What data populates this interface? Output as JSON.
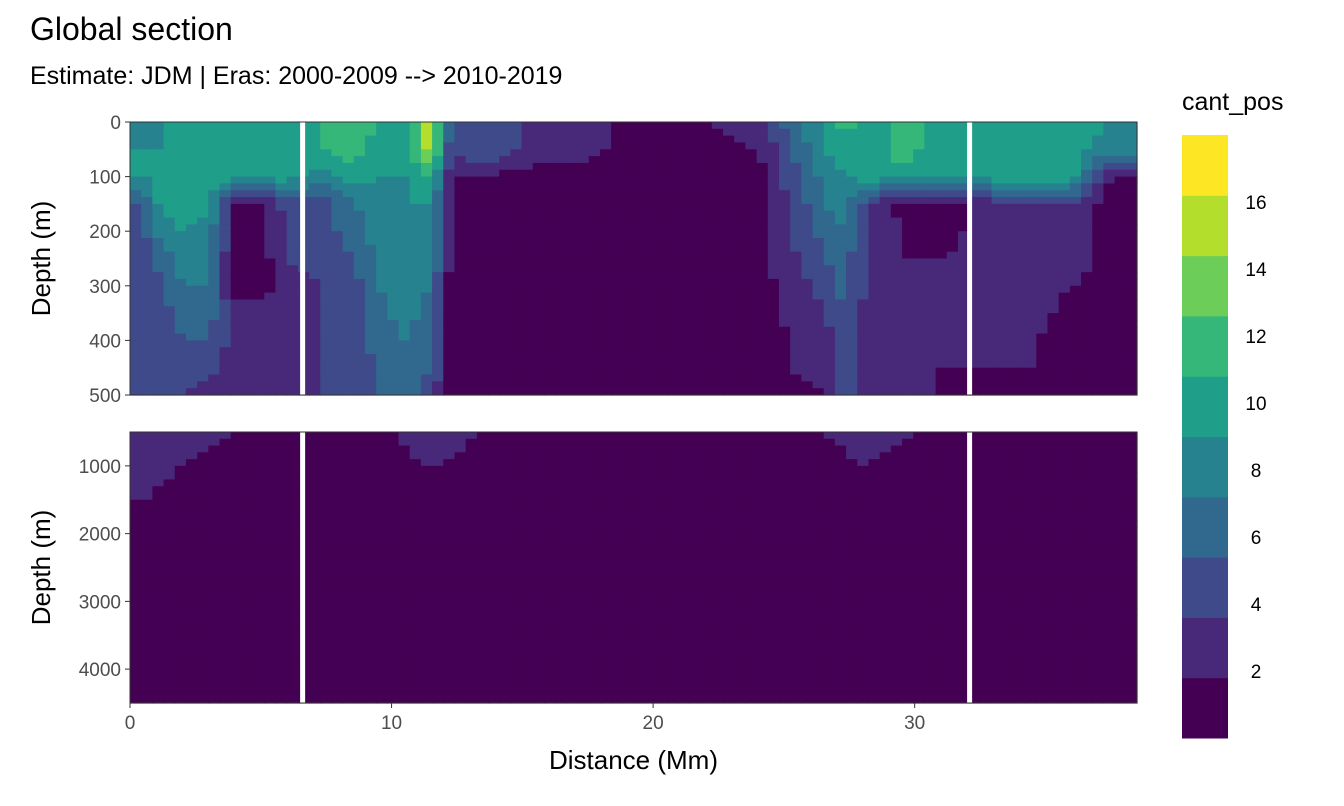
{
  "chart_data": {
    "type": "heatmap",
    "title": "Global section",
    "subtitle": "Estimate: JDM  | Eras: 2000-2009 --> 2010-2019",
    "xlabel": "Distance (Mm)",
    "ylabel": "Depth (m)",
    "xlim": [
      0,
      38.5
    ],
    "x_ticks": [
      "0",
      "10",
      "20",
      "30"
    ],
    "x_tick_values": [
      0,
      10,
      20,
      30
    ],
    "legend": {
      "title": "cant_pos",
      "placement": "right",
      "breaks": [
        0,
        2,
        4,
        6,
        8,
        10,
        12,
        14,
        16,
        18
      ],
      "labels": [
        "2",
        "4",
        "6",
        "8",
        "10",
        "12",
        "14",
        "16"
      ],
      "label_values": [
        2,
        4,
        6,
        8,
        10,
        12,
        14,
        16
      ],
      "colors": [
        "#440154",
        "#482878",
        "#3E4A89",
        "#31688E",
        "#26828E",
        "#1F9E89",
        "#35B779",
        "#6DCD59",
        "#B4DE2C",
        "#FDE725"
      ]
    },
    "panels": [
      {
        "name": "upper",
        "ylim": [
          0,
          500
        ],
        "y_ticks": [
          "0",
          "100",
          "200",
          "300",
          "400",
          "500"
        ],
        "y_tick_values": [
          0,
          100,
          200,
          300,
          400,
          500
        ],
        "grid": true
      },
      {
        "name": "lower",
        "ylim": [
          500,
          4500
        ],
        "y_ticks": [
          "1000",
          "2000",
          "3000",
          "4000"
        ],
        "y_tick_values": [
          1000,
          2000,
          3000,
          4000
        ],
        "grid": true
      }
    ],
    "section_gaps_x": [
      6.6,
      32.1
    ],
    "upper_field_samples": [
      {
        "x": 0.4,
        "values": [
          8,
          10,
          10,
          6,
          5,
          4,
          4,
          4,
          4,
          4,
          4
        ]
      },
      {
        "x": 1.2,
        "values": [
          10,
          10,
          11,
          11,
          9,
          7,
          6,
          5,
          4,
          4,
          4
        ]
      },
      {
        "x": 2.0,
        "values": [
          11,
          10,
          11,
          11,
          10,
          9,
          8,
          7,
          6,
          5,
          4
        ]
      },
      {
        "x": 3.0,
        "values": [
          11,
          11,
          11,
          11,
          9,
          9,
          8,
          7,
          6,
          5,
          3
        ]
      },
      {
        "x": 4.0,
        "values": [
          11,
          11,
          11,
          1,
          2,
          1,
          1,
          3,
          3,
          3,
          3
        ]
      },
      {
        "x": 5.0,
        "values": [
          11,
          11,
          11,
          1,
          1,
          1,
          1,
          3,
          3,
          3,
          3
        ]
      },
      {
        "x": 6.0,
        "values": [
          11,
          11,
          11,
          5,
          4,
          4,
          3,
          3,
          3,
          3,
          3
        ]
      },
      {
        "x": 7.3,
        "values": [
          12,
          12,
          9,
          5,
          5,
          5,
          4,
          4,
          4,
          4,
          4
        ]
      },
      {
        "x": 8.5,
        "values": [
          13,
          13,
          11,
          8,
          7,
          6,
          5,
          5,
          5,
          5,
          5
        ]
      },
      {
        "x": 9.5,
        "values": [
          12,
          11,
          10,
          9,
          9,
          8,
          8,
          7,
          7,
          6,
          6
        ]
      },
      {
        "x": 10.5,
        "values": [
          11,
          11,
          10,
          10,
          9,
          9,
          9,
          9,
          8,
          8,
          7
        ]
      },
      {
        "x": 11.5,
        "values": [
          17,
          17,
          12,
          10,
          9,
          9,
          8,
          7,
          7,
          6,
          5
        ]
      },
      {
        "x": 12.3,
        "values": [
          5,
          4,
          2,
          1,
          1,
          1,
          1,
          1,
          1,
          1,
          1
        ]
      },
      {
        "x": 13.5,
        "values": [
          6,
          6,
          2,
          1,
          1,
          1,
          1,
          1,
          1,
          1,
          1
        ]
      },
      {
        "x": 15.0,
        "values": [
          4,
          4,
          1,
          1,
          1,
          1,
          1,
          1,
          1,
          1,
          1
        ]
      },
      {
        "x": 20.0,
        "values": [
          1,
          1,
          1,
          1,
          1,
          1,
          1,
          1,
          1,
          1,
          1
        ]
      },
      {
        "x": 24.0,
        "values": [
          3,
          2,
          1,
          1,
          1,
          1,
          1,
          1,
          1,
          1,
          1
        ]
      },
      {
        "x": 26.6,
        "values": [
          11,
          10,
          9,
          8,
          7,
          6,
          5,
          4,
          3,
          3,
          2
        ]
      },
      {
        "x": 27.3,
        "values": [
          13,
          11,
          10,
          9,
          8,
          7,
          7,
          6,
          6,
          6,
          5
        ]
      },
      {
        "x": 28.3,
        "values": [
          11,
          11,
          11,
          4,
          4,
          3,
          3,
          3,
          3,
          3,
          3
        ]
      },
      {
        "x": 29.5,
        "values": [
          13,
          13,
          11,
          1,
          2,
          2,
          2,
          2,
          2,
          2,
          2
        ]
      },
      {
        "x": 31.0,
        "values": [
          11,
          11,
          11,
          1,
          1,
          2,
          2,
          2,
          2,
          2,
          2
        ]
      },
      {
        "x": 32.8,
        "values": [
          11,
          11,
          11,
          3,
          3,
          3,
          3,
          2,
          2,
          2,
          1
        ]
      },
      {
        "x": 34.5,
        "values": [
          11,
          11,
          11,
          3,
          4,
          4,
          4,
          3,
          2,
          2,
          2
        ]
      },
      {
        "x": 36.0,
        "values": [
          11,
          11,
          11,
          4,
          4,
          3,
          2,
          1,
          1,
          1,
          1
        ]
      },
      {
        "x": 37.5,
        "values": [
          10,
          9,
          2,
          1,
          1,
          1,
          1,
          1,
          1,
          1,
          1
        ]
      }
    ],
    "upper_depths": [
      0,
      50,
      100,
      150,
      200,
      250,
      300,
      350,
      400,
      450,
      500
    ],
    "lower_field_samples": [
      {
        "x": 0.5,
        "values": [
          4,
          3,
          2,
          1,
          1
        ]
      },
      {
        "x": 2.0,
        "values": [
          3,
          2,
          1,
          1,
          1
        ]
      },
      {
        "x": 4.0,
        "values": [
          2,
          1,
          1,
          1,
          1
        ]
      },
      {
        "x": 10.0,
        "values": [
          2,
          1,
          1,
          1,
          1
        ]
      },
      {
        "x": 11.5,
        "values": [
          4,
          2,
          1,
          1,
          1
        ]
      },
      {
        "x": 14.0,
        "values": [
          1,
          1,
          1,
          1,
          1
        ]
      },
      {
        "x": 26.5,
        "values": [
          2,
          1,
          1,
          1,
          1
        ]
      },
      {
        "x": 28.0,
        "values": [
          3,
          2,
          1,
          1,
          1
        ]
      },
      {
        "x": 30.0,
        "values": [
          2,
          1,
          1,
          1,
          1
        ]
      },
      {
        "x": 33.0,
        "values": [
          1,
          1,
          1,
          1,
          1
        ]
      }
    ],
    "lower_depths": [
      500,
      1000,
      1500,
      2000,
      4500
    ]
  }
}
